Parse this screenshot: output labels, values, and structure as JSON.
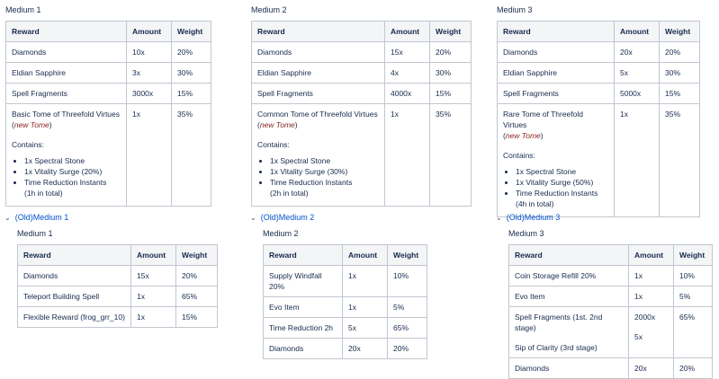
{
  "headers": {
    "reward": "Reward",
    "amount": "Amount",
    "weight": "Weight"
  },
  "current": [
    {
      "title": "Medium 1",
      "rows": [
        {
          "reward": "Diamonds",
          "amount": "10x",
          "weight": "20%"
        },
        {
          "reward": "Eldian Sapphire",
          "amount": "3x",
          "weight": "30%"
        },
        {
          "reward": "Spell Fragments",
          "amount": "3000x",
          "weight": "15%"
        }
      ],
      "tome": {
        "name": "Basic Tome of Threefold Virtues",
        "tag": "new Tome",
        "amount": "1x",
        "weight": "35%",
        "contains_label": "Contains:",
        "items": [
          "1x Spectral Stone",
          "1x Vitality Surge (20%)",
          "Time Reduction Instants"
        ],
        "total": "(1h in total)"
      }
    },
    {
      "title": "Medium 2",
      "rows": [
        {
          "reward": "Diamonds",
          "amount": "15x",
          "weight": "20%"
        },
        {
          "reward": "Eldian Sapphire",
          "amount": "4x",
          "weight": "30%"
        },
        {
          "reward": "Spell Fragments",
          "amount": "4000x",
          "weight": "15%"
        }
      ],
      "tome": {
        "name": "Common Tome of Threefold Virtues",
        "tag": "new Tome",
        "amount": "1x",
        "weight": "35%",
        "contains_label": "Contains:",
        "items": [
          "1x Spectral Stone",
          "1x Vitality Surge (30%)",
          "Time Reduction Instants"
        ],
        "total": "(2h in total)"
      }
    },
    {
      "title": "Medium 3",
      "rows": [
        {
          "reward": "Diamonds",
          "amount": "20x",
          "weight": "20%"
        },
        {
          "reward": "Eldian Sapphire",
          "amount": "5x",
          "weight": "30%"
        },
        {
          "reward": "Spell Fragments",
          "amount": "5000x",
          "weight": "15%"
        }
      ],
      "tome": {
        "name": "Rare Tome of Threefold Virtues",
        "tag": "new Tome",
        "amount": "1x",
        "weight": "35%",
        "contains_label": "Contains:",
        "items": [
          "1x Spectral Stone",
          "1x Vitality Surge (50%)",
          "Time Reduction Instants"
        ],
        "total": "(4h in total)"
      }
    }
  ],
  "old": [
    {
      "expander": "(Old)Medium 1",
      "title": "Medium 1",
      "rows": [
        {
          "reward": "Diamonds",
          "amount": "15x",
          "weight": "20%"
        },
        {
          "reward": "Teleport Building Spell",
          "amount": "1x",
          "weight": "65%"
        },
        {
          "reward": "Flexible Reward (frog_grr_10)",
          "amount": "1x",
          "weight": "15%"
        }
      ]
    },
    {
      "expander": "(Old)Medium 2",
      "title": "Medium 2",
      "rows": [
        {
          "reward": "Supply Windfall 20%",
          "amount": "1x",
          "weight": "10%"
        },
        {
          "reward": "Evo Item",
          "amount": "1x",
          "weight": "5%"
        },
        {
          "reward": "Time Reduction 2h",
          "amount": "5x",
          "weight": "65%"
        },
        {
          "reward": "Diamonds",
          "amount": "20x",
          "weight": "20%"
        }
      ]
    },
    {
      "expander": "(Old)Medium 3",
      "title": "Medium 3",
      "rows": [
        {
          "reward": "Coin Storage Refill 20%",
          "amount": "1x",
          "weight": "10%"
        },
        {
          "reward": "Evo Item",
          "amount": "1x",
          "weight": "5%"
        },
        {
          "reward": "Spell Fragments (1st. 2nd stage)",
          "reward2": "Sip of Clarity (3rd stage)",
          "amount": "2000x",
          "amount2": "5x",
          "weight": "65%"
        },
        {
          "reward": "Diamonds",
          "amount": "20x",
          "weight": "20%"
        }
      ]
    }
  ]
}
